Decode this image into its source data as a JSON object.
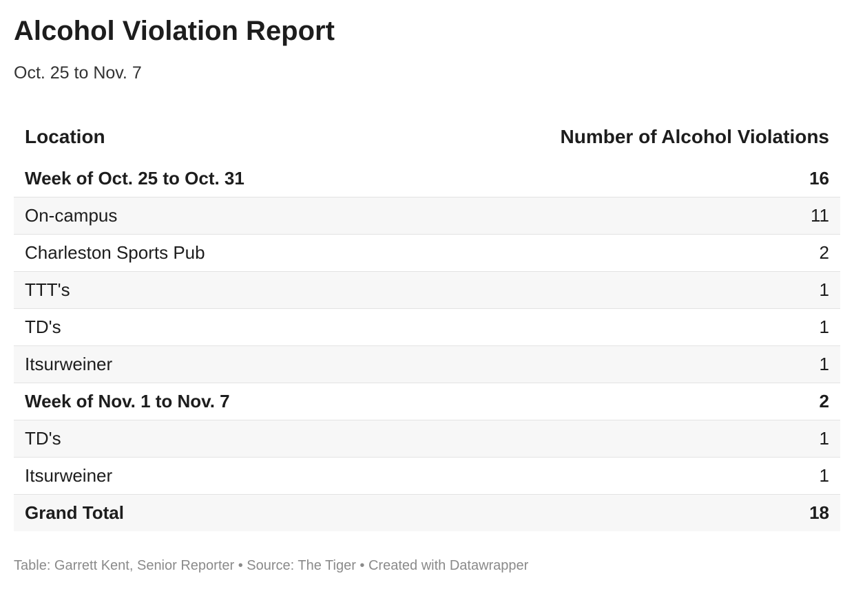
{
  "header": {
    "title": "Alcohol Violation Report",
    "subtitle": "Oct. 25 to Nov. 7"
  },
  "table": {
    "columns": [
      "Location",
      "Number of Alcohol Violations"
    ],
    "rows": [
      [
        "Week of Oct. 25 to Oct. 31",
        16
      ],
      [
        "On-campus",
        11
      ],
      [
        "Charleston Sports Pub",
        2
      ],
      [
        "TTT's",
        1
      ],
      [
        "TD's",
        1
      ],
      [
        "Itsurweiner",
        1
      ],
      [
        "Week of Nov. 1 to Nov. 7",
        2
      ],
      [
        "TD's",
        1
      ],
      [
        "Itsurweiner",
        1
      ],
      [
        "Grand Total",
        18
      ]
    ]
  },
  "footer": "Table: Garrett Kent, Senior Reporter • Source: The Tiger • Created with Datawrapper"
}
